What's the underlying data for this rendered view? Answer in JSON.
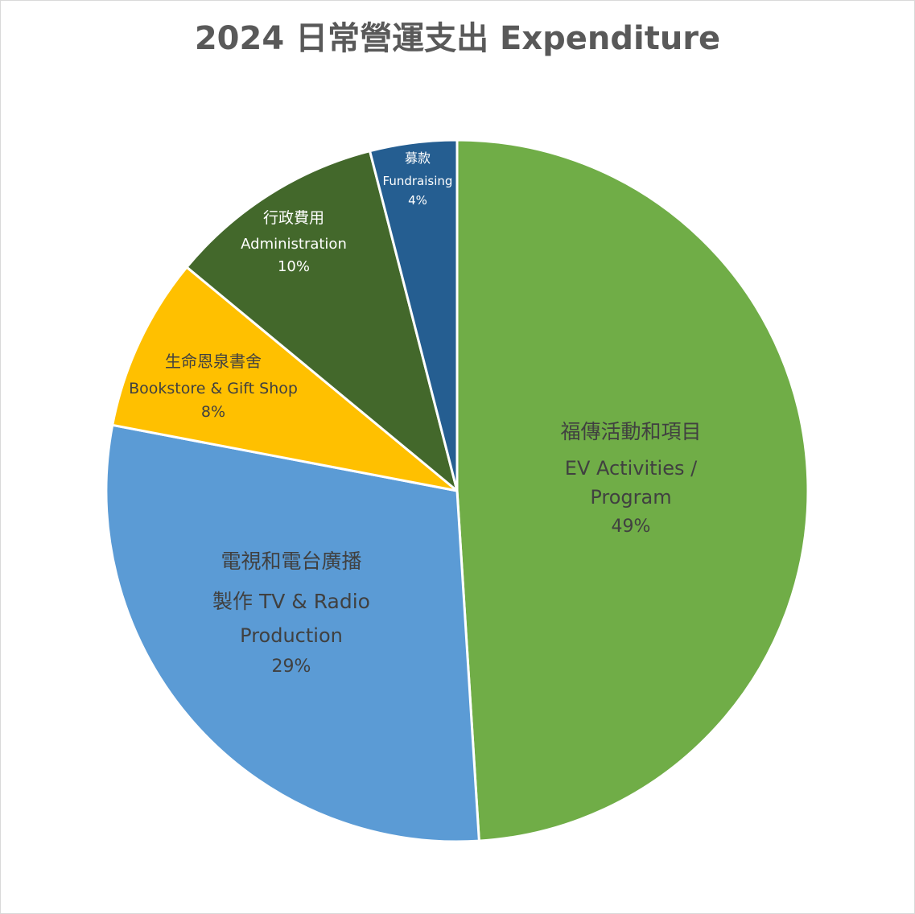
{
  "chart_data": {
    "type": "pie",
    "title": "2024 日常營運支出 Expenditure",
    "start_angle_deg": 0,
    "direction": "clockwise",
    "slices": [
      {
        "lines": [
          "福傳活動和項目",
          "EV Activities /",
          "Program",
          "49%"
        ],
        "value": 49,
        "percent_label": "49%",
        "color": "#70AD47",
        "text_color": "#404040"
      },
      {
        "lines": [
          "電視和電台廣播",
          "製作 TV & Radio",
          "Production",
          "29%"
        ],
        "value": 29,
        "percent_label": "29%",
        "color": "#5B9BD5",
        "text_color": "#404040"
      },
      {
        "lines": [
          "生命恩泉書舍",
          "Bookstore & Gift Shop",
          "8%"
        ],
        "value": 8,
        "percent_label": "8%",
        "color": "#FFC000",
        "text_color": "#404040"
      },
      {
        "lines": [
          "行政費用",
          "Administration",
          "10%"
        ],
        "value": 10,
        "percent_label": "10%",
        "color": "#43682B",
        "text_color": "#FFFFFF"
      },
      {
        "lines": [
          "募款",
          "Fundraising",
          "4%"
        ],
        "value": 4,
        "percent_label": "4%",
        "color": "#255E91",
        "text_color": "#FFFFFF"
      }
    ]
  }
}
